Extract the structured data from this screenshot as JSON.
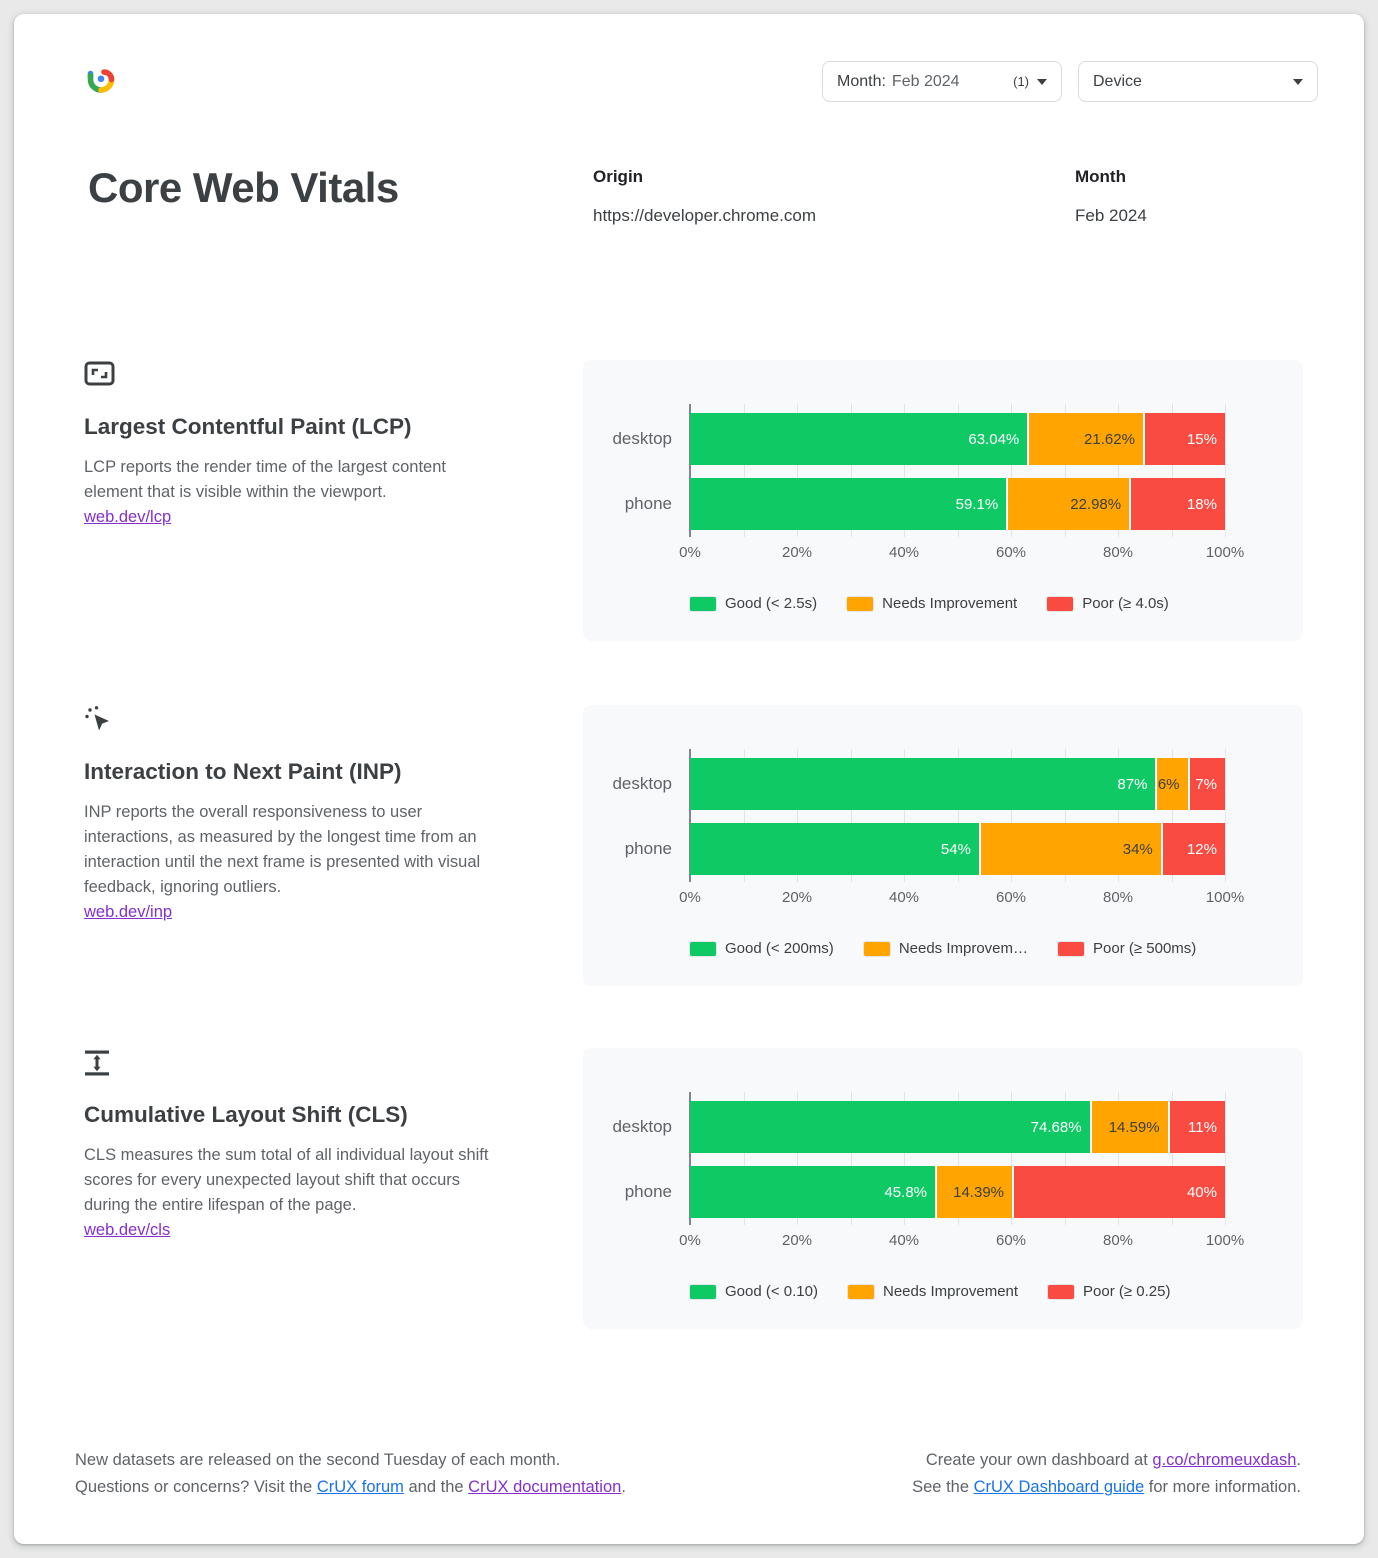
{
  "header": {
    "month_dropdown": {
      "label": "Month:",
      "value": "Feb 2024",
      "count": "(1)"
    },
    "device_dropdown": {
      "label": "Device"
    },
    "title": "Core Web Vitals",
    "origin_label": "Origin",
    "origin_value": "https://developer.chrome.com",
    "month_label": "Month",
    "month_value": "Feb 2024"
  },
  "colors": {
    "good": "#0FC964",
    "ni": "#FFA400",
    "poor": "#F94B42",
    "link_blue": "#1A73E8",
    "link_purple": "#8430CE"
  },
  "segment_label_colors": {
    "good": "#ffffff",
    "ni": "#3c4043",
    "poor": "#ffffff"
  },
  "sections": [
    {
      "title": "Largest Contentful Paint (LCP)",
      "description": "LCP reports the render time of the largest content element that is visible within the viewport.",
      "link": "web.dev/lcp"
    },
    {
      "title": "Interaction to Next Paint (INP)",
      "description": "INP reports the overall responsiveness to user interactions, as measured by the longest time from an interaction until the next frame is presented with visual feedback, ignoring outliers.",
      "link": "web.dev/inp"
    },
    {
      "title": "Cumulative Layout Shift (CLS)",
      "description": "CLS measures the sum total of all individual layout shift scores for every unexpected layout shift that occurs during the entire lifespan of the page.",
      "link": "web.dev/cls"
    }
  ],
  "chart_data": [
    {
      "id": "lcp",
      "type": "bar",
      "stacked": true,
      "orientation": "horizontal",
      "categories": [
        "desktop",
        "phone"
      ],
      "series": [
        {
          "name": "Good (< 2.5s)",
          "color_key": "good",
          "values": [
            63.04,
            59.1
          ],
          "labels": [
            "63.04%",
            "59.1%"
          ]
        },
        {
          "name": "Needs Improvement",
          "color_key": "ni",
          "values": [
            21.62,
            22.98
          ],
          "labels": [
            "21.62%",
            "22.98%"
          ]
        },
        {
          "name": "Poor (≥ 4.0s)",
          "color_key": "poor",
          "values": [
            15.34,
            17.92
          ],
          "labels": [
            "15%",
            "18%"
          ]
        }
      ],
      "xlim": [
        0,
        100
      ],
      "x_ticks": [
        "0%",
        "20%",
        "40%",
        "60%",
        "80%",
        "100%"
      ],
      "grid": true,
      "legend_position": "bottom",
      "legend": [
        "Good (< 2.5s)",
        "Needs Improvement",
        "Poor (≥ 4.0s)"
      ]
    },
    {
      "id": "inp",
      "type": "bar",
      "stacked": true,
      "orientation": "horizontal",
      "categories": [
        "desktop",
        "phone"
      ],
      "series": [
        {
          "name": "Good (< 200ms)",
          "color_key": "good",
          "values": [
            87,
            54
          ],
          "labels": [
            "87%",
            "54%"
          ]
        },
        {
          "name": "Needs Improvement",
          "color_key": "ni",
          "values": [
            6,
            34
          ],
          "labels": [
            "6%",
            "34%"
          ]
        },
        {
          "name": "Poor (≥ 500ms)",
          "color_key": "poor",
          "values": [
            7,
            12
          ],
          "labels": [
            "7%",
            "12%"
          ]
        }
      ],
      "xlim": [
        0,
        100
      ],
      "x_ticks": [
        "0%",
        "20%",
        "40%",
        "60%",
        "80%",
        "100%"
      ],
      "grid": true,
      "legend_position": "bottom",
      "legend": [
        "Good (< 200ms)",
        "Needs Improvem…",
        "Poor (≥ 500ms)"
      ]
    },
    {
      "id": "cls",
      "type": "bar",
      "stacked": true,
      "orientation": "horizontal",
      "categories": [
        "desktop",
        "phone"
      ],
      "series": [
        {
          "name": "Good (< 0.10)",
          "color_key": "good",
          "values": [
            74.68,
            45.8
          ],
          "labels": [
            "74.68%",
            "45.8%"
          ]
        },
        {
          "name": "Needs Improvement",
          "color_key": "ni",
          "values": [
            14.59,
            14.39
          ],
          "labels": [
            "14.59%",
            "14.39%"
          ]
        },
        {
          "name": "Poor (≥ 0.25)",
          "color_key": "poor",
          "values": [
            10.73,
            39.81
          ],
          "labels": [
            "11%",
            "40%"
          ]
        }
      ],
      "xlim": [
        0,
        100
      ],
      "x_ticks": [
        "0%",
        "20%",
        "40%",
        "60%",
        "80%",
        "100%"
      ],
      "grid": true,
      "legend_position": "bottom",
      "legend": [
        "Good (< 0.10)",
        "Needs Improvement",
        "Poor (≥ 0.25)"
      ]
    }
  ],
  "footer": {
    "left_line1": "New datasets are released on the second Tuesday of each month.",
    "left_line2_prefix": "Questions or concerns? Visit the ",
    "left_link1": "CrUX forum",
    "left_line2_mid": " and the ",
    "left_link2": "CrUX documentation",
    "left_line2_suffix": ".",
    "right_line1_prefix": "Create your own dashboard at ",
    "right_link1": "g.co/chromeuxdash",
    "right_line1_suffix": ".",
    "right_line2_prefix": "See the ",
    "right_link2": "CrUX Dashboard guide",
    "right_line2_suffix": " for more information."
  }
}
